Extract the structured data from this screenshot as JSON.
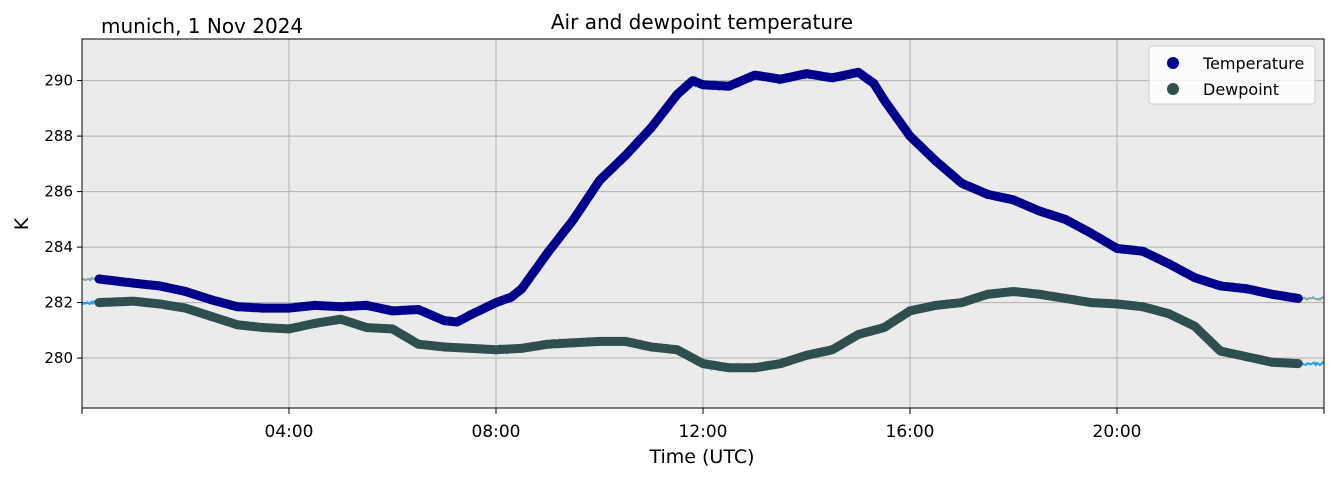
{
  "chart_data": {
    "type": "line",
    "title": "Air and dewpoint temperature",
    "subtitle": "munich, 1 Nov 2024",
    "xlabel": "Time (UTC)",
    "ylabel": "K",
    "xlim_hours": [
      0,
      24
    ],
    "ylim": [
      278.2,
      291.5
    ],
    "x_ticks": [
      "04:00",
      "08:00",
      "12:00",
      "16:00",
      "20:00"
    ],
    "x_tick_hours": [
      4,
      8,
      12,
      16,
      20
    ],
    "y_ticks": [
      280,
      282,
      284,
      286,
      288,
      290
    ],
    "grid": true,
    "legend_placement": "top-right",
    "background_color": "#ebebeb",
    "series": [
      {
        "name": "Temperature",
        "marker_color": "#00008b",
        "raw_color": "#7aa8ac",
        "x": [
          0.33,
          1.0,
          1.5,
          2.0,
          2.5,
          3.0,
          3.5,
          4.0,
          4.5,
          5.0,
          5.5,
          6.0,
          6.5,
          7.0,
          7.25,
          7.5,
          8.0,
          8.3,
          8.5,
          9.0,
          9.5,
          10.0,
          10.5,
          11.0,
          11.5,
          11.8,
          12.0,
          12.5,
          13.0,
          13.5,
          14.0,
          14.5,
          15.0,
          15.3,
          15.5,
          16.0,
          16.5,
          17.0,
          17.5,
          18.0,
          18.5,
          19.0,
          19.5,
          20.0,
          20.5,
          21.0,
          21.5,
          22.0,
          22.5,
          23.0,
          23.5
        ],
        "values": [
          282.85,
          282.7,
          282.6,
          282.4,
          282.1,
          281.85,
          281.8,
          281.8,
          281.9,
          281.85,
          281.9,
          281.7,
          281.75,
          281.35,
          281.3,
          281.55,
          282.0,
          282.2,
          282.5,
          283.8,
          285.0,
          286.4,
          287.3,
          288.3,
          289.5,
          290.0,
          289.85,
          289.8,
          290.2,
          290.05,
          290.25,
          290.1,
          290.3,
          289.9,
          289.3,
          288.0,
          287.1,
          286.3,
          285.9,
          285.7,
          285.3,
          285.0,
          284.5,
          283.95,
          283.85,
          283.4,
          282.9,
          282.6,
          282.5,
          282.3,
          282.15
        ]
      },
      {
        "name": "Dewpoint",
        "marker_color": "#2f4f4f",
        "raw_color": "#1e9df0",
        "x": [
          0.33,
          1.0,
          1.5,
          2.0,
          2.5,
          3.0,
          3.5,
          4.0,
          4.5,
          5.0,
          5.5,
          6.0,
          6.5,
          7.0,
          7.5,
          8.0,
          8.5,
          9.0,
          9.5,
          10.0,
          10.5,
          11.0,
          11.5,
          12.0,
          12.5,
          13.0,
          13.5,
          14.0,
          14.5,
          15.0,
          15.5,
          16.0,
          16.5,
          17.0,
          17.5,
          18.0,
          18.5,
          19.0,
          19.5,
          20.0,
          20.5,
          21.0,
          21.5,
          22.0,
          22.5,
          23.0,
          23.5
        ],
        "values": [
          282.0,
          282.05,
          281.95,
          281.8,
          281.5,
          281.2,
          281.1,
          281.05,
          281.25,
          281.4,
          281.1,
          281.05,
          280.5,
          280.4,
          280.35,
          280.3,
          280.35,
          280.5,
          280.55,
          280.6,
          280.6,
          280.4,
          280.3,
          279.8,
          279.65,
          279.65,
          279.8,
          280.1,
          280.3,
          280.85,
          281.1,
          281.7,
          281.9,
          282.0,
          282.3,
          282.4,
          282.3,
          282.15,
          282.0,
          281.95,
          281.85,
          281.6,
          281.15,
          280.25,
          280.05,
          279.85,
          279.8
        ]
      }
    ]
  }
}
